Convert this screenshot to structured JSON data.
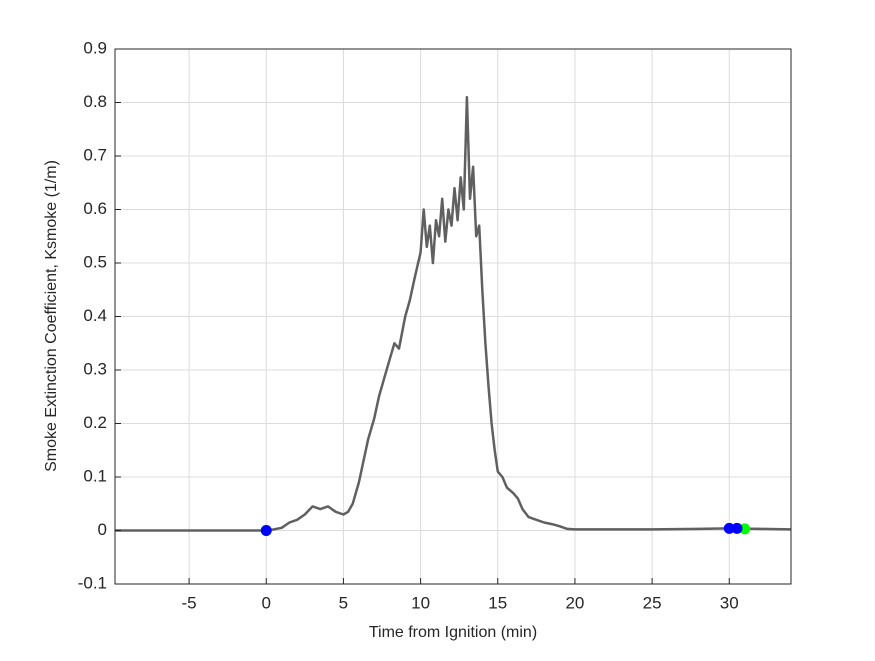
{
  "chart_data": {
    "type": "line",
    "x_label": "Time from Ignition (min)",
    "y_label": "Smoke Extinction Coefficient, Ksmoke (1/m)",
    "xlim": [
      -9.8,
      34
    ],
    "ylim": [
      -0.1,
      0.9
    ],
    "xticks": [
      -5,
      0,
      5,
      10,
      15,
      20,
      25,
      30
    ],
    "yticks": [
      -0.1,
      0,
      0.1,
      0.2,
      0.3,
      0.4,
      0.5,
      0.6,
      0.7,
      0.8,
      0.9
    ],
    "grid": true,
    "series": [
      {
        "color": "#606060",
        "x": [
          -9.8,
          -8,
          -6,
          -4,
          -2,
          0,
          0.5,
          1,
          1.5,
          2,
          2.5,
          3,
          3.5,
          4,
          4.5,
          5,
          5.3,
          5.6,
          6,
          6.3,
          6.6,
          7,
          7.3,
          7.6,
          8,
          8.3,
          8.6,
          9,
          9.3,
          9.6,
          10,
          10.2,
          10.4,
          10.6,
          10.8,
          11,
          11.2,
          11.4,
          11.6,
          11.8,
          12,
          12.2,
          12.4,
          12.6,
          12.8,
          13,
          13.2,
          13.4,
          13.6,
          13.8,
          14,
          14.2,
          14.4,
          14.6,
          14.8,
          15,
          15.3,
          15.6,
          16,
          16.3,
          16.6,
          17,
          17.5,
          18,
          18.5,
          19,
          19.5,
          20,
          22,
          25,
          28,
          30,
          32,
          34
        ],
        "values": [
          0,
          0,
          0,
          0,
          0,
          0,
          0.002,
          0.005,
          0.015,
          0.02,
          0.03,
          0.045,
          0.04,
          0.045,
          0.035,
          0.03,
          0.035,
          0.05,
          0.09,
          0.13,
          0.17,
          0.21,
          0.25,
          0.28,
          0.32,
          0.35,
          0.34,
          0.4,
          0.43,
          0.47,
          0.52,
          0.6,
          0.53,
          0.57,
          0.5,
          0.58,
          0.55,
          0.62,
          0.54,
          0.6,
          0.57,
          0.64,
          0.58,
          0.66,
          0.6,
          0.81,
          0.62,
          0.68,
          0.55,
          0.57,
          0.45,
          0.35,
          0.27,
          0.2,
          0.15,
          0.11,
          0.1,
          0.08,
          0.07,
          0.06,
          0.04,
          0.025,
          0.02,
          0.015,
          0.012,
          0.008,
          0.003,
          0.002,
          0.002,
          0.002,
          0.003,
          0.004,
          0.003,
          0.002
        ]
      },
      {
        "type": "scatter",
        "color": "#00ff00",
        "x": [
          0,
          31
        ],
        "values": [
          0,
          0.003
        ]
      },
      {
        "type": "scatter",
        "color": "#0000ff",
        "x": [
          0,
          30,
          30.5
        ],
        "values": [
          0,
          0.004,
          0.004
        ]
      }
    ]
  }
}
